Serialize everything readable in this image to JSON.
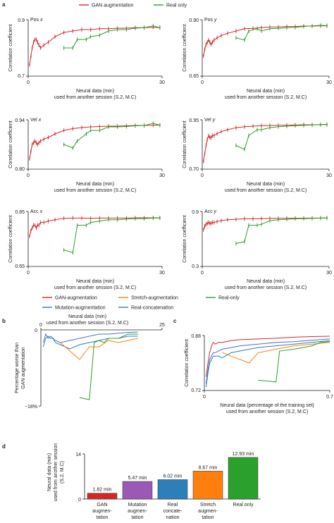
{
  "panel_labels": {
    "a": "a",
    "b": "b",
    "c": "c",
    "d": "d"
  },
  "legend_top": {
    "items": [
      {
        "label": "GAN augmentation",
        "color": "#d62728"
      },
      {
        "label": "Real only",
        "color": "#2ca02c"
      }
    ]
  },
  "legend_mid": {
    "items": [
      {
        "label": "GAN-augmentation",
        "color": "#d62728"
      },
      {
        "label": "Stretch-augmentation",
        "color": "#ff7f0e"
      },
      {
        "label": "Real-only",
        "color": "#2ca02c"
      },
      {
        "label": "Mutation-augmentation",
        "color": "#4a6fd1"
      },
      {
        "label": "Real-concatenation",
        "color": "#2c7fb8"
      }
    ]
  },
  "colors": {
    "gan": "#d62728",
    "real": "#2ca02c",
    "stretch": "#ff7f0e",
    "mutation": "#4a6fd1",
    "concat": "#2c7fb8",
    "purple": "#9b59b6"
  },
  "chart_data": [
    {
      "id": "pos-x",
      "type": "line",
      "title_main": "Pos ",
      "title_var": "x",
      "xlabel_line1": "Neural data (min)",
      "xlabel_line2": "used from another session (S.2, M.C)",
      "ylabel": "Correlation coefficient",
      "xlim": [
        0,
        30
      ],
      "ylim": [
        0.7,
        0.9
      ],
      "xticks": [
        "0",
        "30"
      ],
      "yticks": [
        "0.7",
        "0.9"
      ],
      "series": [
        {
          "key": "gan",
          "x": [
            0.3,
            0.6,
            0.9,
            1.2,
            1.5,
            1.8,
            2.1,
            2.4,
            2.8,
            3.5,
            4.5,
            6,
            8,
            10,
            12,
            14,
            16,
            18,
            20,
            22,
            24,
            26,
            28,
            29.5
          ],
          "y": [
            0.74,
            0.77,
            0.8,
            0.82,
            0.83,
            0.83,
            0.82,
            0.81,
            0.8,
            0.81,
            0.82,
            0.84,
            0.855,
            0.86,
            0.865,
            0.865,
            0.868,
            0.868,
            0.87,
            0.87,
            0.872,
            0.872,
            0.873,
            0.872
          ]
        },
        {
          "key": "real",
          "x": [
            8,
            10,
            11,
            13,
            14,
            16,
            18,
            20,
            22,
            24,
            26,
            28,
            29.5
          ],
          "y": [
            0.8,
            0.8,
            0.83,
            0.83,
            0.84,
            0.845,
            0.86,
            0.865,
            0.865,
            0.87,
            0.872,
            0.878,
            0.872
          ]
        }
      ]
    },
    {
      "id": "pos-y",
      "type": "line",
      "title_main": "Pos ",
      "title_var": "y",
      "xlabel_line1": "Neural data (min)",
      "xlabel_line2": "used from another session (S.2, M.C)",
      "ylabel": "Correlation coefficient",
      "xlim": [
        0,
        30
      ],
      "ylim": [
        0.65,
        0.9
      ],
      "xticks": [
        "0",
        "30"
      ],
      "yticks": [
        "0.65",
        "0.90"
      ],
      "series": [
        {
          "key": "gan",
          "x": [
            0.3,
            0.6,
            0.9,
            1.2,
            1.5,
            1.8,
            2.1,
            2.4,
            2.8,
            3.5,
            4.5,
            6,
            8,
            10,
            12,
            14,
            16,
            18,
            20,
            22,
            24,
            26,
            28,
            29.5
          ],
          "y": [
            0.74,
            0.77,
            0.79,
            0.8,
            0.81,
            0.8,
            0.79,
            0.8,
            0.81,
            0.82,
            0.83,
            0.84,
            0.85,
            0.86,
            0.862,
            0.865,
            0.868,
            0.868,
            0.87,
            0.87,
            0.872,
            0.872,
            0.873,
            0.873
          ]
        },
        {
          "key": "real",
          "x": [
            8,
            10,
            11,
            13,
            14,
            16,
            18,
            20,
            22,
            24,
            26,
            28,
            29.5
          ],
          "y": [
            0.82,
            0.81,
            0.85,
            0.86,
            0.85,
            0.86,
            0.862,
            0.865,
            0.866,
            0.87,
            0.873,
            0.875,
            0.874
          ]
        }
      ]
    },
    {
      "id": "vel-x",
      "type": "line",
      "title_main": "Vel ",
      "title_var": "x",
      "xlabel_line1": "Neural data (min)",
      "xlabel_line2": "used from another session (S.2, M.C)",
      "ylabel": "Correlation coefficient",
      "xlim": [
        0,
        30
      ],
      "ylim": [
        0.8,
        0.94
      ],
      "xticks": [
        "0",
        "30"
      ],
      "yticks": [
        "0.80",
        "0.94"
      ],
      "series": [
        {
          "key": "gan",
          "x": [
            0.3,
            0.6,
            0.9,
            1.2,
            1.5,
            1.8,
            2.1,
            2.4,
            2.8,
            3.5,
            4.5,
            6,
            8,
            10,
            12,
            14,
            16,
            18,
            20,
            22,
            24,
            26,
            28,
            29.5
          ],
          "y": [
            0.83,
            0.85,
            0.87,
            0.875,
            0.88,
            0.875,
            0.87,
            0.875,
            0.88,
            0.885,
            0.89,
            0.9,
            0.91,
            0.915,
            0.918,
            0.92,
            0.921,
            0.922,
            0.922,
            0.923,
            0.924,
            0.924,
            0.925,
            0.925
          ]
        },
        {
          "key": "real",
          "x": [
            8,
            10,
            11,
            13,
            14,
            16,
            18,
            20,
            22,
            24,
            26,
            28,
            29.5
          ],
          "y": [
            0.87,
            0.86,
            0.88,
            0.9,
            0.91,
            0.91,
            0.92,
            0.92,
            0.921,
            0.923,
            0.924,
            0.93,
            0.925
          ]
        }
      ]
    },
    {
      "id": "vel-y",
      "type": "line",
      "title_main": "Vel ",
      "title_var": "y",
      "xlabel_line1": "Neural data (min)",
      "xlabel_line2": "used from another session (S.2, M.C)",
      "ylabel": "Correlation coefficient",
      "xlim": [
        0,
        30
      ],
      "ylim": [
        0.7,
        0.95
      ],
      "xticks": [
        "0",
        "30"
      ],
      "yticks": [
        "0.70",
        "0.95"
      ],
      "series": [
        {
          "key": "gan",
          "x": [
            0.3,
            0.6,
            0.9,
            1.2,
            1.5,
            1.8,
            2.1,
            2.4,
            2.8,
            3.5,
            4.5,
            6,
            8,
            10,
            12,
            14,
            16,
            18,
            20,
            22,
            24,
            26,
            28,
            29.5
          ],
          "y": [
            0.74,
            0.78,
            0.82,
            0.85,
            0.87,
            0.86,
            0.86,
            0.87,
            0.87,
            0.88,
            0.89,
            0.9,
            0.91,
            0.915,
            0.918,
            0.92,
            0.921,
            0.922,
            0.923,
            0.924,
            0.925,
            0.925,
            0.926,
            0.926
          ]
        },
        {
          "key": "real",
          "x": [
            8,
            10,
            11,
            13,
            14,
            16,
            18,
            20,
            22,
            24,
            26,
            28,
            29.5
          ],
          "y": [
            0.82,
            0.8,
            0.87,
            0.9,
            0.9,
            0.91,
            0.915,
            0.918,
            0.92,
            0.922,
            0.924,
            0.926,
            0.927
          ]
        }
      ]
    },
    {
      "id": "acc-x",
      "type": "line",
      "title_main": "Acc ",
      "title_var": "x",
      "xlabel_line1": "Neural data (min)",
      "xlabel_line2": "used from another session (S.2, M.C)",
      "ylabel": "Correlation coefficient",
      "xlim": [
        0,
        30
      ],
      "ylim": [
        0.65,
        0.85
      ],
      "xticks": [
        "0",
        "30"
      ],
      "yticks": [
        "0.65",
        "0.85"
      ],
      "series": [
        {
          "key": "gan",
          "x": [
            0.3,
            0.6,
            0.9,
            1.2,
            1.5,
            1.8,
            2.1,
            2.4,
            2.8,
            3.5,
            4.5,
            6,
            8,
            10,
            12,
            14,
            16,
            18,
            20,
            22,
            24,
            26,
            28,
            29.5
          ],
          "y": [
            0.76,
            0.78,
            0.79,
            0.8,
            0.8,
            0.79,
            0.8,
            0.8,
            0.81,
            0.81,
            0.815,
            0.82,
            0.825,
            0.826,
            0.826,
            0.825,
            0.826,
            0.826,
            0.826,
            0.826,
            0.827,
            0.827,
            0.827,
            0.827
          ]
        },
        {
          "key": "real",
          "x": [
            8,
            10,
            11,
            13,
            14,
            16,
            18,
            20,
            22,
            24,
            26,
            28,
            29.5
          ],
          "y": [
            0.71,
            0.7,
            0.8,
            0.8,
            0.81,
            0.815,
            0.82,
            0.82,
            0.822,
            0.824,
            0.824,
            0.826,
            0.826
          ]
        }
      ]
    },
    {
      "id": "acc-y",
      "type": "line",
      "title_main": "Acc ",
      "title_var": "y",
      "xlabel_line1": "Neural data (min)",
      "xlabel_line2": "used from another session (S.2, M.C)",
      "ylabel": "Correlation coefficient",
      "xlim": [
        0,
        30
      ],
      "ylim": [
        0.3,
        0.9
      ],
      "xticks": [
        "0",
        "30"
      ],
      "yticks": [
        "0.3",
        "0.9"
      ],
      "series": [
        {
          "key": "gan",
          "x": [
            0.3,
            0.6,
            0.9,
            1.2,
            1.5,
            1.8,
            2.1,
            2.4,
            2.8,
            3.5,
            4.5,
            6,
            8,
            10,
            12,
            14,
            16,
            18,
            20,
            22,
            24,
            26,
            28,
            29.5
          ],
          "y": [
            0.7,
            0.74,
            0.76,
            0.77,
            0.78,
            0.77,
            0.77,
            0.78,
            0.78,
            0.79,
            0.8,
            0.81,
            0.815,
            0.82,
            0.82,
            0.822,
            0.824,
            0.825,
            0.826,
            0.826,
            0.827,
            0.828,
            0.828,
            0.829
          ]
        },
        {
          "key": "real",
          "x": [
            8,
            10,
            11,
            13,
            14,
            16,
            18,
            20,
            22,
            24,
            26,
            28,
            29.5
          ],
          "y": [
            0.55,
            0.57,
            0.75,
            0.75,
            0.76,
            0.8,
            0.81,
            0.815,
            0.82,
            0.822,
            0.825,
            0.828,
            0.83
          ]
        }
      ]
    },
    {
      "id": "panel-b",
      "type": "line",
      "title_line1": "Neural data (min)",
      "title_line2": "used from another session (S.2, M.C)",
      "ylabel_line1": "Percentage worse than",
      "ylabel_line2": "GAN augmentation",
      "xlim": [
        0,
        25
      ],
      "ylim": [
        -18,
        0
      ],
      "xticks": [
        "0",
        "25"
      ],
      "yticks": [
        "0",
        "−18%"
      ],
      "series": [
        {
          "key": "mutation",
          "x": [
            0.5,
            1,
            1.5,
            2,
            2.5,
            3,
            4,
            6,
            8,
            10,
            12,
            14,
            16,
            18,
            20
          ],
          "y": [
            -3,
            -1,
            -2,
            -1.5,
            -2,
            -2.5,
            -3,
            -2.5,
            -2,
            -1.5,
            -1,
            -1,
            -0.8,
            -0.6,
            -0.5
          ]
        },
        {
          "key": "concat",
          "x": [
            0.5,
            1,
            1.5,
            2,
            2.5,
            3,
            4,
            6,
            8,
            10,
            12,
            14,
            16,
            18,
            20
          ],
          "y": [
            -4,
            -2,
            -1.5,
            -2,
            -2,
            -3,
            -3.5,
            -4.5,
            -3.5,
            -3,
            -2.5,
            -2,
            -2,
            -1.5,
            -1.5
          ]
        },
        {
          "key": "stretch",
          "x": [
            4,
            6,
            8,
            10,
            12,
            14,
            16,
            18,
            20
          ],
          "y": [
            -3,
            -5,
            -7,
            -4,
            -4,
            -2.5,
            -3,
            -2.5,
            -2
          ]
        },
        {
          "key": "real",
          "x": [
            8,
            10,
            11,
            12,
            13,
            14,
            16,
            18,
            20
          ],
          "y": [
            -16,
            -16.5,
            -3,
            -2.5,
            -3,
            -2,
            -2,
            -1,
            -1
          ]
        }
      ]
    },
    {
      "id": "panel-c",
      "type": "line",
      "xlabel_line1": "Neural data (percentage of the training set)",
      "xlabel_line2": "used from another session (S.2, M.C)",
      "ylabel": "Correlation coefficient",
      "xlim": [
        0,
        0.7
      ],
      "ylim": [
        0.72,
        0.88
      ],
      "xticks": [
        "0",
        "0.7"
      ],
      "yticks": [
        "0.72",
        "0.88"
      ],
      "series": [
        {
          "key": "gan",
          "x": [
            0.01,
            0.02,
            0.03,
            0.04,
            0.05,
            0.06,
            0.08,
            0.1,
            0.15,
            0.2,
            0.3,
            0.4,
            0.5,
            0.6,
            0.7
          ],
          "y": [
            0.76,
            0.8,
            0.83,
            0.85,
            0.86,
            0.855,
            0.86,
            0.86,
            0.865,
            0.868,
            0.87,
            0.872,
            0.875,
            0.877,
            0.878
          ]
        },
        {
          "key": "mutation",
          "x": [
            0.01,
            0.02,
            0.03,
            0.04,
            0.05,
            0.06,
            0.08,
            0.1,
            0.15,
            0.2,
            0.3,
            0.4,
            0.5,
            0.6,
            0.7
          ],
          "y": [
            0.74,
            0.78,
            0.81,
            0.82,
            0.83,
            0.83,
            0.835,
            0.84,
            0.845,
            0.85,
            0.855,
            0.86,
            0.862,
            0.866,
            0.87
          ]
        },
        {
          "key": "concat",
          "x": [
            0.01,
            0.02,
            0.03,
            0.04,
            0.05,
            0.06,
            0.08,
            0.1,
            0.15,
            0.2,
            0.3,
            0.4,
            0.5,
            0.6,
            0.7
          ],
          "y": [
            0.73,
            0.77,
            0.8,
            0.81,
            0.82,
            0.82,
            0.82,
            0.815,
            0.83,
            0.835,
            0.845,
            0.85,
            0.855,
            0.86,
            0.865
          ]
        },
        {
          "key": "stretch",
          "x": [
            0.1,
            0.15,
            0.2,
            0.25,
            0.3,
            0.35,
            0.4,
            0.5,
            0.6,
            0.7
          ],
          "y": [
            0.83,
            0.82,
            0.81,
            0.8,
            0.83,
            0.835,
            0.84,
            0.85,
            0.855,
            0.86
          ]
        },
        {
          "key": "real",
          "x": [
            0.3,
            0.4,
            0.42,
            0.5,
            0.55,
            0.6,
            0.65,
            0.7
          ],
          "y": [
            0.75,
            0.745,
            0.835,
            0.84,
            0.845,
            0.85,
            0.86,
            0.862
          ]
        }
      ]
    },
    {
      "id": "panel-d",
      "type": "bar",
      "ylabel_line1": "Neural data (min)",
      "ylabel_line2": "used from another session",
      "ylabel_line3": "(S.2, M.C)",
      "ylim": [
        0,
        14
      ],
      "yticks": [
        "0",
        "14"
      ],
      "bars": [
        {
          "label_lines": [
            "GAN",
            "augmen-",
            "tation"
          ],
          "value": 1.82,
          "text": "1.82 min",
          "key": "gan"
        },
        {
          "label_lines": [
            "Mutation",
            "augmen-",
            "tation"
          ],
          "value": 5.47,
          "text": "5.47 min",
          "key": "purple"
        },
        {
          "label_lines": [
            "Real",
            "concate-",
            "nation"
          ],
          "value": 6.02,
          "text": "6.02 min",
          "key": "concat"
        },
        {
          "label_lines": [
            "Stretch",
            "augmen-",
            "tation"
          ],
          "value": 8.67,
          "text": "8.67 min",
          "key": "stretch"
        },
        {
          "label_lines": [
            "Real only"
          ],
          "value": 12.93,
          "text": "12.93 min",
          "key": "real"
        }
      ]
    }
  ]
}
